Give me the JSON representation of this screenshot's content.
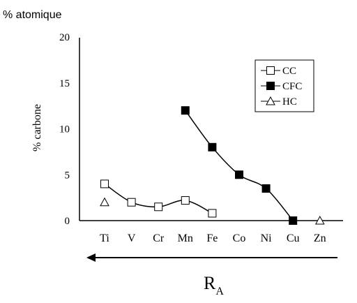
{
  "chart_data": {
    "type": "line",
    "unit_label": "% atomique",
    "ylabel": "% carbone",
    "xlabel": "R",
    "xlabel_subscript": "A",
    "categories": [
      "Ti",
      "V",
      "Cr",
      "Mn",
      "Fe",
      "Co",
      "Ni",
      "Cu",
      "Zn"
    ],
    "ylim": [
      0,
      20
    ],
    "yticks": [
      "0",
      "5",
      "10",
      "15",
      "20"
    ],
    "arrow_direction": "left",
    "legend_position": "top-right",
    "series": [
      {
        "name": "CC",
        "marker": "square-open",
        "line": true,
        "points": [
          [
            "Ti",
            4.0
          ],
          [
            "V",
            2.0
          ],
          [
            "Cr",
            1.5
          ],
          [
            "Mn",
            2.2
          ],
          [
            "Fe",
            0.8
          ]
        ]
      },
      {
        "name": "CFC",
        "marker": "square-filled",
        "line": true,
        "points": [
          [
            "Mn",
            12.0
          ],
          [
            "Fe",
            8.0
          ],
          [
            "Co",
            5.0
          ],
          [
            "Ni",
            3.5
          ],
          [
            "Cu",
            0.0
          ]
        ]
      },
      {
        "name": "HC",
        "marker": "triangle-open",
        "line": false,
        "points": [
          [
            "Ti",
            2.0
          ],
          [
            "Zn",
            0.0
          ]
        ]
      }
    ]
  }
}
